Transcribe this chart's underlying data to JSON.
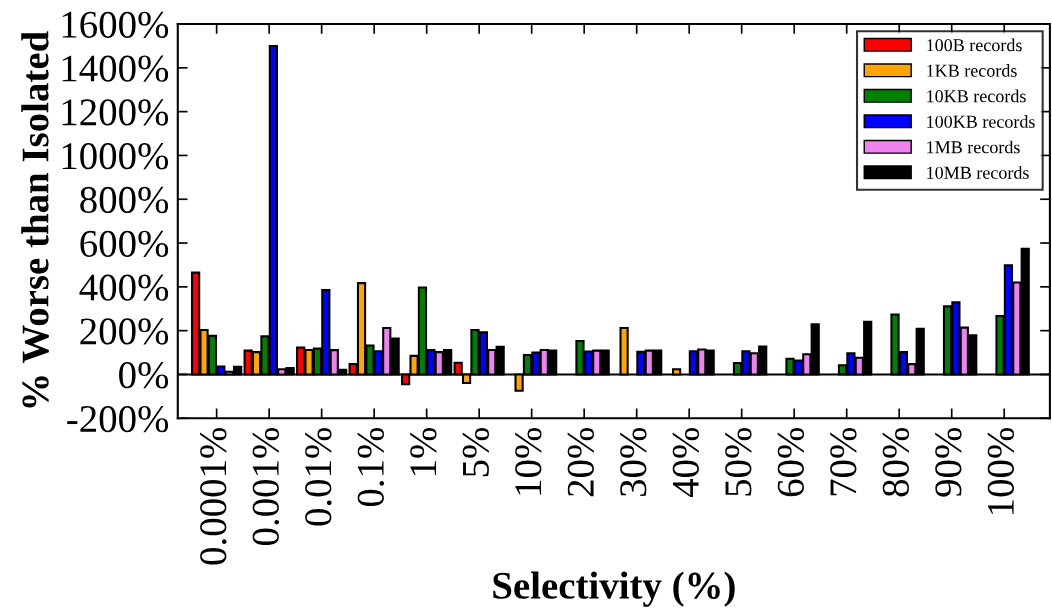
{
  "chart_data": {
    "type": "bar",
    "xlabel": "Selectivity (%)",
    "ylabel": "% Worse than Isolated",
    "categories": [
      "0.0001%",
      "0.001%",
      "0.01%",
      "0.1%",
      "1%",
      "5%",
      "10%",
      "20%",
      "30%",
      "40%",
      "50%",
      "60%",
      "70%",
      "80%",
      "90%",
      "100%"
    ],
    "series": [
      {
        "name": "100B records",
        "color": "#ff0000",
        "values": [
          465,
          109,
          123,
          48,
          -45,
          53,
          null,
          null,
          null,
          null,
          null,
          null,
          null,
          null,
          null,
          null
        ]
      },
      {
        "name": "1KB records",
        "color": "#ffa500",
        "values": [
          203,
          102,
          112,
          417,
          85,
          -39,
          -74,
          null,
          212,
          24,
          null,
          null,
          null,
          null,
          null,
          null
        ]
      },
      {
        "name": "10KB records",
        "color": "#008000",
        "values": [
          176,
          174,
          118,
          132,
          397,
          203,
          89,
          153,
          null,
          null,
          52,
          71,
          42,
          274,
          311,
          267
        ]
      },
      {
        "name": "100KB records",
        "color": "#0000ff",
        "values": [
          36,
          1500,
          385,
          106,
          111,
          192,
          100,
          105,
          103,
          106,
          106,
          64,
          97,
          102,
          330,
          498
        ]
      },
      {
        "name": "1MB records",
        "color": "#ee82ee",
        "values": [
          12,
          24,
          111,
          212,
          102,
          112,
          112,
          109,
          109,
          114,
          97,
          92,
          76,
          47,
          214,
          420
        ]
      },
      {
        "name": "10MB records",
        "color": "#000000",
        "values": [
          35,
          29,
          21,
          164,
          111,
          126,
          109,
          109,
          109,
          109,
          127,
          229,
          241,
          209,
          179,
          574
        ]
      }
    ],
    "ylim": [
      -200,
      1600
    ],
    "yticks": [
      {
        "value": -200,
        "label": "-200%"
      },
      {
        "value": 0,
        "label": "0%"
      },
      {
        "value": 200,
        "label": "200%"
      },
      {
        "value": 400,
        "label": "400%"
      },
      {
        "value": 600,
        "label": "600%"
      },
      {
        "value": 800,
        "label": "800%"
      },
      {
        "value": 1000,
        "label": "1000%"
      },
      {
        "value": 1200,
        "label": "1200%"
      },
      {
        "value": 1400,
        "label": "1400%"
      },
      {
        "value": 1600,
        "label": "1600%"
      }
    ],
    "ref_lines": [
      {
        "axis": "y",
        "value": 0,
        "color": "#000000"
      }
    ],
    "legend": "top right"
  }
}
